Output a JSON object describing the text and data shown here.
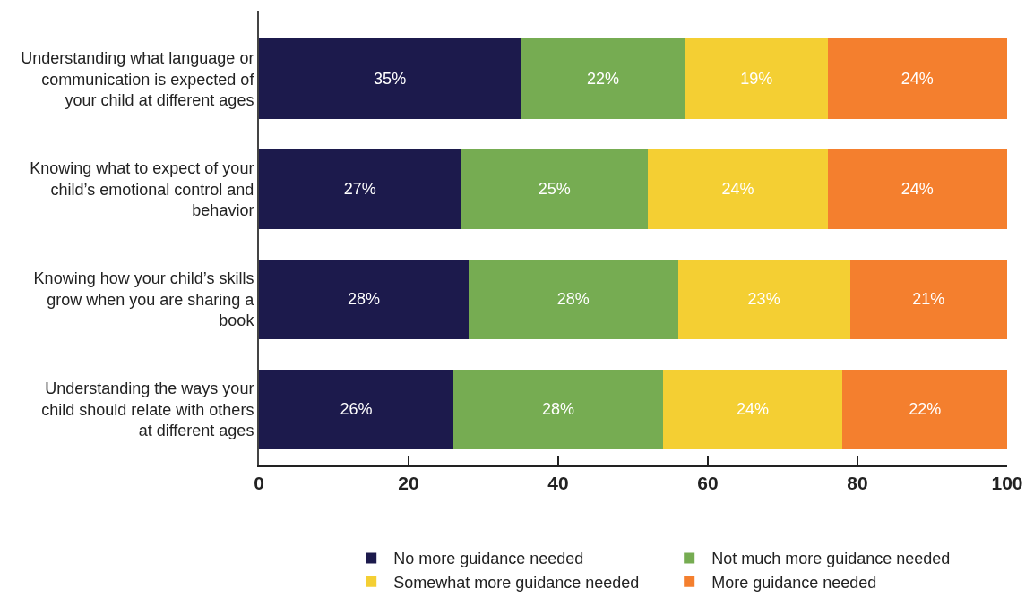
{
  "chart_data": {
    "type": "bar",
    "orientation": "horizontal",
    "stacked": true,
    "categories": [
      "Understanding what language or communication is expected of your child at different ages",
      "Knowing what to expect of your child’s emotional control and behavior",
      "Knowing how your child’s skills grow when you are sharing a book",
      "Understanding the ways your child should relate with others at different ages"
    ],
    "series": [
      {
        "name": "No more guidance needed",
        "color": "#1c1a4c",
        "values": [
          35,
          27,
          28,
          26
        ],
        "value_labels": [
          "35%",
          "27%",
          "28%",
          "26%"
        ]
      },
      {
        "name": "Not much more guidance needed",
        "color": "#76ac52",
        "values": [
          22,
          25,
          28,
          28
        ],
        "value_labels": [
          "22%",
          "25%",
          "28%",
          "28%"
        ]
      },
      {
        "name": "Somewhat more guidance needed",
        "color": "#f4cf33",
        "values": [
          19,
          24,
          23,
          24
        ],
        "value_labels": [
          "19%",
          "24%",
          "23%",
          "24%"
        ]
      },
      {
        "name": "More guidance needed",
        "color": "#f47f2e",
        "values": [
          24,
          24,
          21,
          22
        ],
        "value_labels": [
          "24%",
          "24%",
          "21%",
          "22%"
        ]
      }
    ],
    "xlim": [
      0,
      100
    ],
    "xticks": [
      0,
      20,
      40,
      60,
      80,
      100
    ],
    "legend": "bottom"
  }
}
